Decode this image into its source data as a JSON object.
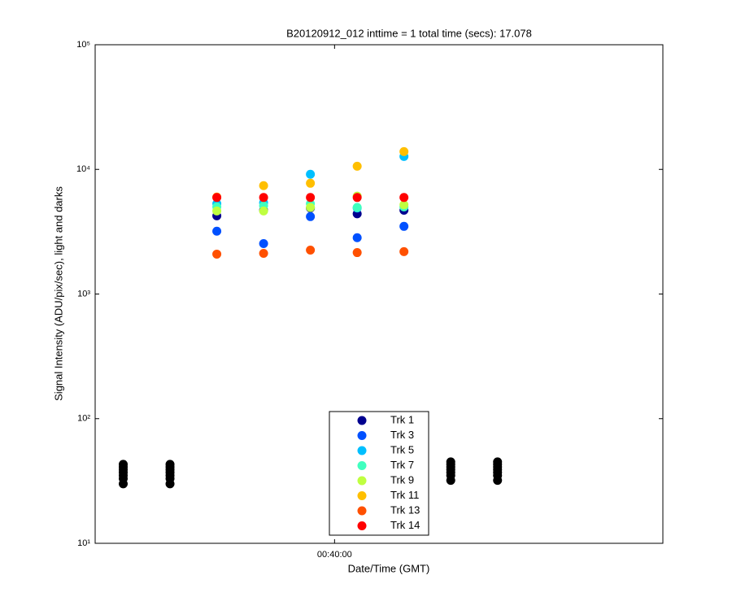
{
  "chart_data": {
    "type": "scatter",
    "title": "B20120912_012 inttime = 1 total time (secs): 17.078",
    "x_label": "Date/Time (GMT)",
    "y_label": "Signal Intensity (ADU/pix/sec), light and darks",
    "y_scale": "log",
    "ylim": [
      10,
      100000
    ],
    "yticks": [
      {
        "value": 10,
        "label": "10¹"
      },
      {
        "value": 100,
        "label": "10²"
      },
      {
        "value": 1000,
        "label": "10³"
      },
      {
        "value": 10000,
        "label": "10⁴"
      },
      {
        "value": 100000,
        "label": "10⁵"
      }
    ],
    "xlim": [
      "00:34:53",
      "00:47:01"
    ],
    "xticks": [
      "00:40:00"
    ],
    "legend": "lower center",
    "x": [
      "00:35:29",
      "00:36:29",
      "00:37:29",
      "00:38:29",
      "00:39:29",
      "00:40:29",
      "00:41:29",
      "00:42:29",
      "00:43:29"
    ],
    "series": [
      {
        "name": "Trk 1",
        "color": "#00008f",
        "values": [
          null,
          null,
          4240,
          4700,
          4900,
          4400,
          4700,
          null,
          null
        ]
      },
      {
        "name": "Trk 3",
        "color": "#0050ff",
        "values": [
          null,
          null,
          3190,
          2540,
          4180,
          2830,
          3490,
          null,
          null
        ]
      },
      {
        "name": "Trk 5",
        "color": "#00bfff",
        "values": [
          null,
          null,
          5310,
          5400,
          9140,
          4900,
          12700,
          null,
          null
        ]
      },
      {
        "name": "Trk 7",
        "color": "#40ffbf",
        "values": [
          null,
          null,
          5000,
          5100,
          5300,
          4950,
          5000,
          null,
          null
        ]
      },
      {
        "name": "Trk 9",
        "color": "#bfff40",
        "values": [
          null,
          null,
          4640,
          4640,
          4950,
          6100,
          5200,
          null,
          null
        ]
      },
      {
        "name": "Trk 11",
        "color": "#ffbf00",
        "values": [
          null,
          null,
          6000,
          7400,
          7740,
          10600,
          13900,
          null,
          null
        ]
      },
      {
        "name": "Trk 13",
        "color": "#ff5000",
        "values": [
          null,
          null,
          2090,
          2120,
          2250,
          2150,
          2190,
          null,
          null
        ]
      },
      {
        "name": "Trk 14",
        "color": "#ff0000",
        "values": [
          null,
          null,
          5950,
          5950,
          5950,
          5950,
          5950,
          null,
          null
        ]
      },
      {
        "color": "#000000",
        "x": [
          "00:35:29",
          "00:35:29",
          "00:35:29",
          "00:35:29",
          "00:35:29",
          "00:35:29",
          "00:35:29",
          "00:36:29",
          "00:36:29",
          "00:36:29",
          "00:36:29",
          "00:36:29",
          "00:36:29",
          "00:36:29",
          "00:42:29",
          "00:42:29",
          "00:42:29",
          "00:42:29",
          "00:42:29",
          "00:42:29",
          "00:42:29",
          "00:43:29",
          "00:43:29",
          "00:43:29",
          "00:43:29",
          "00:43:29",
          "00:43:29",
          "00:43:29"
        ],
        "values": [
          30,
          33,
          35,
          37,
          39,
          41,
          43,
          30,
          33,
          35,
          37,
          39,
          41,
          43,
          32,
          35,
          37,
          39,
          41,
          43,
          45,
          32,
          35,
          37,
          39,
          41,
          43,
          45
        ]
      }
    ]
  }
}
